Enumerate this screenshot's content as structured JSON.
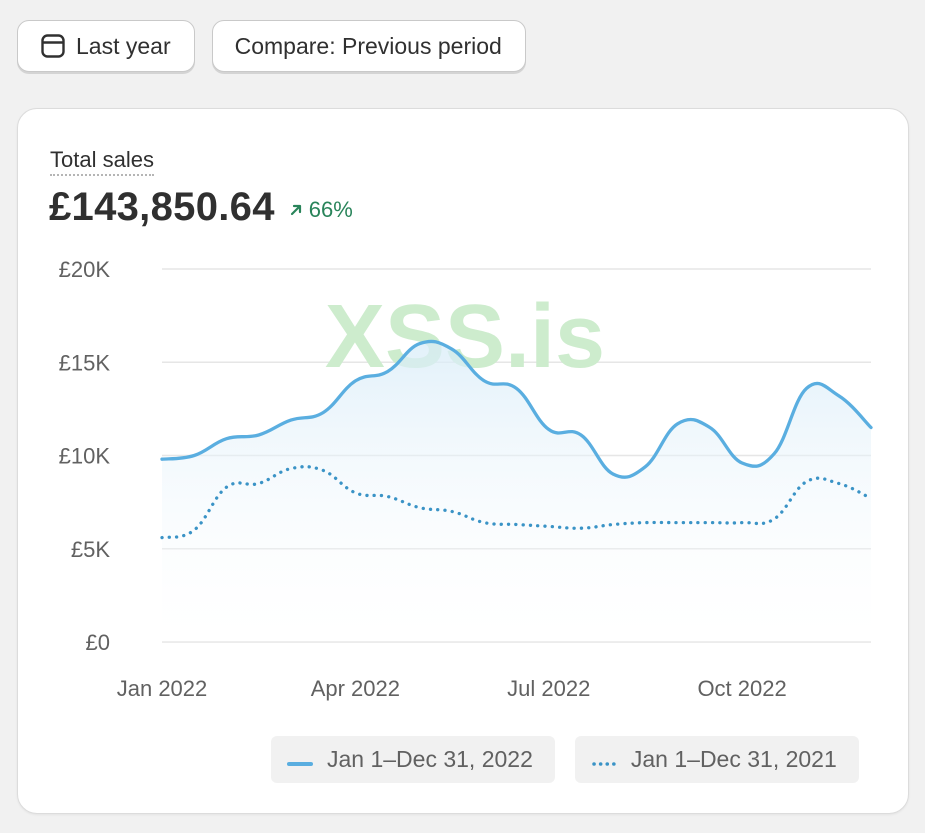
{
  "toolbar": {
    "date_label": "Last year",
    "compare_label": "Compare: Previous period"
  },
  "metric": {
    "title": "Total sales",
    "value": "£143,850.64",
    "change": "66%",
    "change_direction": "up"
  },
  "watermark": "XSS.is",
  "colors": {
    "current_series": "#5aaee0",
    "previous_series": "#3a93c6",
    "positive": "#29845a",
    "watermark": "#cdeccd"
  },
  "chart_data": {
    "type": "line",
    "title": "Total sales",
    "ylim": [
      0,
      20000
    ],
    "y_ticks": [
      {
        "label": "£20K",
        "value": 20000
      },
      {
        "label": "£15K",
        "value": 15000
      },
      {
        "label": "£10K",
        "value": 10000
      },
      {
        "label": "£5K",
        "value": 5000
      },
      {
        "label": "£0",
        "value": 0
      }
    ],
    "x_ticks": [
      {
        "label": "Jan 2022",
        "x": 0
      },
      {
        "label": "Apr 2022",
        "x": 3
      },
      {
        "label": "Jul 2022",
        "x": 6
      },
      {
        "label": "Oct 2022",
        "x": 9
      }
    ],
    "x_range": [
      0,
      11
    ],
    "grid": true,
    "legend_position": "bottom",
    "series": [
      {
        "name": "Jan 1–Dec 31, 2022",
        "style": "solid",
        "x": [
          0,
          0.5,
          1,
          1.5,
          2,
          2.5,
          3,
          3.5,
          4,
          4.5,
          5,
          5.5,
          6,
          6.5,
          7,
          7.5,
          8,
          8.5,
          9,
          9.5,
          10,
          10.5,
          11
        ],
        "values": [
          9800,
          10000,
          10900,
          11100,
          11900,
          12300,
          14000,
          14500,
          16000,
          15700,
          14000,
          13600,
          11400,
          11100,
          9000,
          9400,
          11700,
          11500,
          9600,
          10100,
          13600,
          13200,
          11500
        ]
      },
      {
        "name": "Jan 1–Dec 31, 2021",
        "style": "dotted",
        "x": [
          0,
          0.5,
          1,
          1.5,
          2,
          2.5,
          3,
          3.5,
          4,
          4.5,
          5,
          5.5,
          6,
          6.5,
          7,
          7.5,
          8,
          8.5,
          9,
          9.5,
          10,
          10.5,
          11
        ],
        "values": [
          5600,
          6000,
          8300,
          8500,
          9300,
          9200,
          8000,
          7800,
          7200,
          7000,
          6400,
          6300,
          6200,
          6100,
          6300,
          6400,
          6400,
          6400,
          6400,
          6600,
          8600,
          8500,
          7700
        ]
      }
    ]
  }
}
